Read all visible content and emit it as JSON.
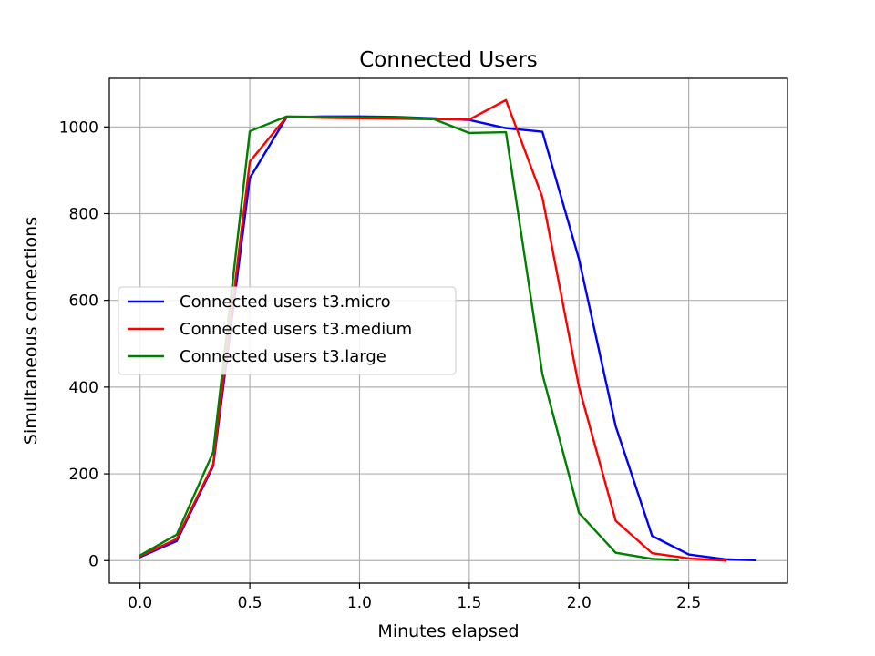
{
  "chart_data": {
    "type": "line",
    "title": "Connected Users",
    "xlabel": "Minutes elapsed",
    "ylabel": "Simultaneous connections",
    "xlim": [
      -0.14,
      2.95
    ],
    "ylim": [
      -52,
      1112
    ],
    "x_ticks": [
      0.0,
      0.5,
      1.0,
      1.5,
      2.0,
      2.5
    ],
    "x_tick_labels": [
      "0.0",
      "0.5",
      "1.0",
      "1.5",
      "2.0",
      "2.5"
    ],
    "y_ticks": [
      0,
      200,
      400,
      600,
      800,
      1000
    ],
    "y_tick_labels": [
      "0",
      "200",
      "400",
      "600",
      "800",
      "1000"
    ],
    "grid": true,
    "legend_position": "center-left",
    "series": [
      {
        "name": "Connected users t3.micro",
        "color": "#0000ff",
        "x": [
          0.0,
          0.167,
          0.333,
          0.5,
          0.667,
          0.833,
          1.0,
          1.167,
          1.333,
          1.5,
          1.667,
          1.833,
          2.0,
          2.167,
          2.333,
          2.5,
          2.667,
          2.8
        ],
        "y": [
          8,
          45,
          218,
          882,
          1022,
          1024,
          1024,
          1023,
          1020,
          1016,
          997,
          989,
          695,
          310,
          57,
          14,
          3,
          1
        ]
      },
      {
        "name": "Connected users t3.medium",
        "color": "#ff0000",
        "x": [
          0.0,
          0.167,
          0.333,
          0.5,
          0.667,
          0.833,
          1.0,
          1.167,
          1.333,
          1.5,
          1.667,
          1.833,
          2.0,
          2.167,
          2.333,
          2.5,
          2.667
        ],
        "y": [
          10,
          50,
          222,
          920,
          1023,
          1021,
          1020,
          1019,
          1018,
          1017,
          1062,
          838,
          400,
          92,
          17,
          5,
          0
        ]
      },
      {
        "name": "Connected users t3.large",
        "color": "#008000",
        "x": [
          0.0,
          0.167,
          0.333,
          0.5,
          0.667,
          0.833,
          1.0,
          1.167,
          1.333,
          1.5,
          1.667,
          1.833,
          2.0,
          2.167,
          2.333,
          2.45
        ],
        "y": [
          12,
          60,
          250,
          990,
          1024,
          1023,
          1022,
          1022,
          1019,
          986,
          988,
          430,
          110,
          18,
          4,
          1
        ]
      }
    ]
  }
}
